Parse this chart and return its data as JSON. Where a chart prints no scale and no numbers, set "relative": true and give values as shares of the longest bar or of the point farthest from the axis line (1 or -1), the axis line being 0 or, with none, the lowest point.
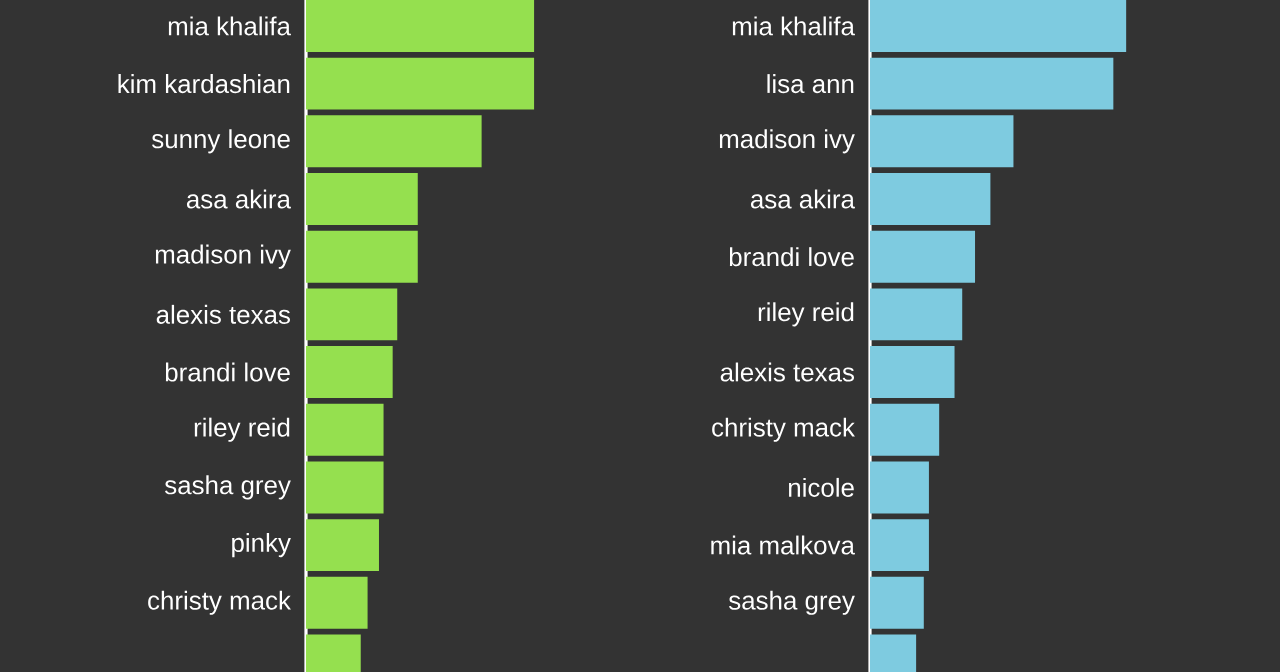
{
  "chart_data": [
    {
      "type": "bar",
      "orientation": "horizontal",
      "relative": true,
      "tick_labels": "y",
      "color": "#95e04f",
      "categories": [
        "mia khalifa",
        "kim kardashian",
        "sunny leone",
        "asa akira",
        "madison ivy",
        "alexis texas",
        "brandi love",
        "riley reid",
        "sasha grey",
        "pinky",
        "christy mack",
        null
      ],
      "values": [
        1,
        1,
        0.77,
        0.49,
        0.49,
        0.4,
        0.38,
        0.34,
        0.34,
        0.32,
        0.27,
        0.24
      ]
    },
    {
      "type": "bar",
      "orientation": "horizontal",
      "relative": true,
      "tick_labels": "y",
      "color": "#7ecbe0",
      "categories": [
        "mia khalifa",
        "lisa ann",
        "madison ivy",
        "asa akira",
        "brandi love",
        "riley reid",
        "alexis texas",
        "christy mack",
        "nicole",
        "mia malkova",
        "sasha grey",
        null
      ],
      "values": [
        1,
        0.95,
        0.56,
        0.47,
        0.41,
        0.36,
        0.33,
        0.27,
        0.23,
        0.23,
        0.21,
        0.18
      ]
    }
  ]
}
